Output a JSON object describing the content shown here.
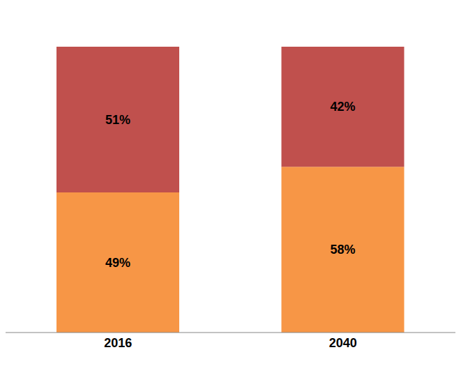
{
  "chart_data": {
    "type": "bar",
    "categories": [
      "2016",
      "2040"
    ],
    "series": [
      {
        "color": "#F79646",
        "values": [
          49,
          58
        ],
        "value_labels": [
          "49%",
          "58%"
        ]
      },
      {
        "color": "#C0504D",
        "values": [
          51,
          42
        ],
        "value_labels": [
          "51%",
          "42%"
        ]
      }
    ],
    "ylim": [
      0,
      100
    ],
    "stacked": true,
    "data_labels": true,
    "tick_labels": "x"
  }
}
